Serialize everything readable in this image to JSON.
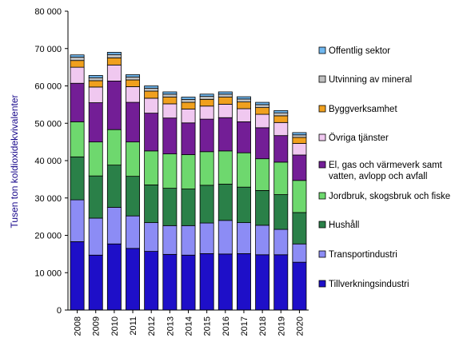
{
  "chart_data": {
    "type": "bar",
    "stacked": true,
    "title": "",
    "xlabel": "",
    "ylabel": "Tusen ton koldioxidekvivalenter",
    "ylim": [
      0,
      80000
    ],
    "yticks": [
      0,
      10000,
      20000,
      30000,
      40000,
      50000,
      60000,
      70000,
      80000
    ],
    "ytick_labels": [
      "0",
      "10 000",
      "20 000",
      "30 000",
      "40 000",
      "50 000",
      "60 000",
      "70 000",
      "80 000"
    ],
    "grid": false,
    "legend_position": "right",
    "categories": [
      "2008",
      "2009",
      "2010",
      "2011",
      "2012",
      "2013",
      "2014",
      "2015",
      "2016",
      "2017",
      "2018",
      "2019",
      "2020"
    ],
    "series": [
      {
        "name": "Tillverkningsindustri",
        "color": "#1e0fc8",
        "values": [
          18300,
          14700,
          17700,
          16500,
          15700,
          14900,
          14700,
          15100,
          15000,
          15100,
          14800,
          14800,
          12800
        ]
      },
      {
        "name": "Transportindustri",
        "color": "#8c8cf5",
        "values": [
          11200,
          9900,
          9800,
          8700,
          7700,
          7700,
          7900,
          8200,
          9000,
          8300,
          7900,
          6800,
          4900
        ]
      },
      {
        "name": "Hushåll",
        "color": "#2a8048",
        "values": [
          11500,
          11300,
          11300,
          10600,
          10100,
          10000,
          9800,
          10100,
          9700,
          9500,
          9300,
          9300,
          8400
        ]
      },
      {
        "name": "Jordbruk, skogsbruk och fiske",
        "color": "#6ed86e",
        "values": [
          9400,
          9100,
          9500,
          9200,
          9100,
          9200,
          9200,
          9000,
          8900,
          9200,
          8500,
          8700,
          8600
        ]
      },
      {
        "name": "El, gas och värmeverk samt\nvatten, avlopp och avfall",
        "color": "#731e96",
        "values": [
          10300,
          10500,
          13000,
          10600,
          10100,
          9600,
          8500,
          8700,
          8900,
          8300,
          8300,
          7100,
          6800
        ]
      },
      {
        "name": "Övriga tjänster",
        "color": "#f0c8f0",
        "values": [
          4300,
          4200,
          4300,
          4200,
          4000,
          3800,
          3700,
          3500,
          3600,
          3500,
          3600,
          3500,
          3100
        ]
      },
      {
        "name": "Byggverksamhet",
        "color": "#f0a01e",
        "values": [
          1800,
          1700,
          1900,
          1800,
          1900,
          1800,
          1800,
          1800,
          1900,
          1800,
          1800,
          1800,
          1600
        ]
      },
      {
        "name": "Utvinning av mineral",
        "color": "#bfbfbf",
        "values": [
          900,
          800,
          900,
          800,
          800,
          800,
          800,
          800,
          800,
          800,
          800,
          800,
          700
        ]
      },
      {
        "name": "Offentlig sektor",
        "color": "#70b8f0",
        "values": [
          600,
          600,
          600,
          600,
          600,
          600,
          600,
          600,
          600,
          600,
          600,
          600,
          600
        ]
      }
    ]
  }
}
